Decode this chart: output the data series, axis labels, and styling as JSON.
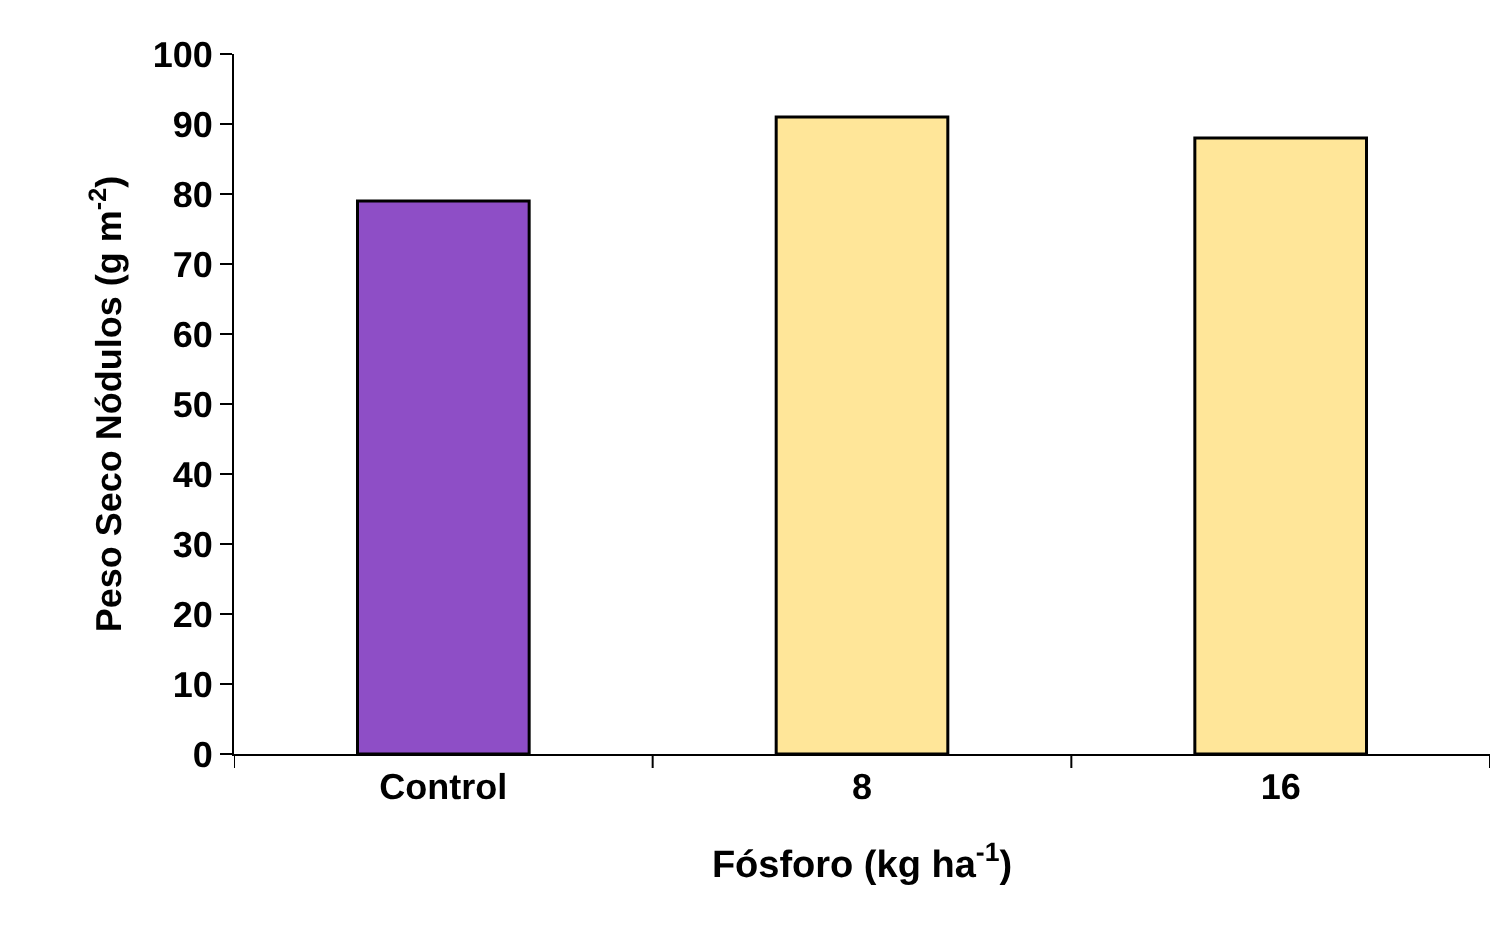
{
  "chart_data": {
    "type": "bar",
    "xlabel": "Fósforo (kg ha$^{-1}$)",
    "ylabel": "Peso Seco Nódulos (g m$^{-2}$)",
    "categories": [
      "Control",
      "8",
      "16"
    ],
    "values": [
      79,
      91,
      88
    ],
    "colors": [
      "#8e4ec6",
      "#ffe699",
      "#ffe699"
    ],
    "ylim": [
      0,
      100
    ],
    "yticks": [
      0,
      10,
      20,
      30,
      40,
      50,
      60,
      70,
      80,
      90,
      100
    ],
    "grid": false
  }
}
